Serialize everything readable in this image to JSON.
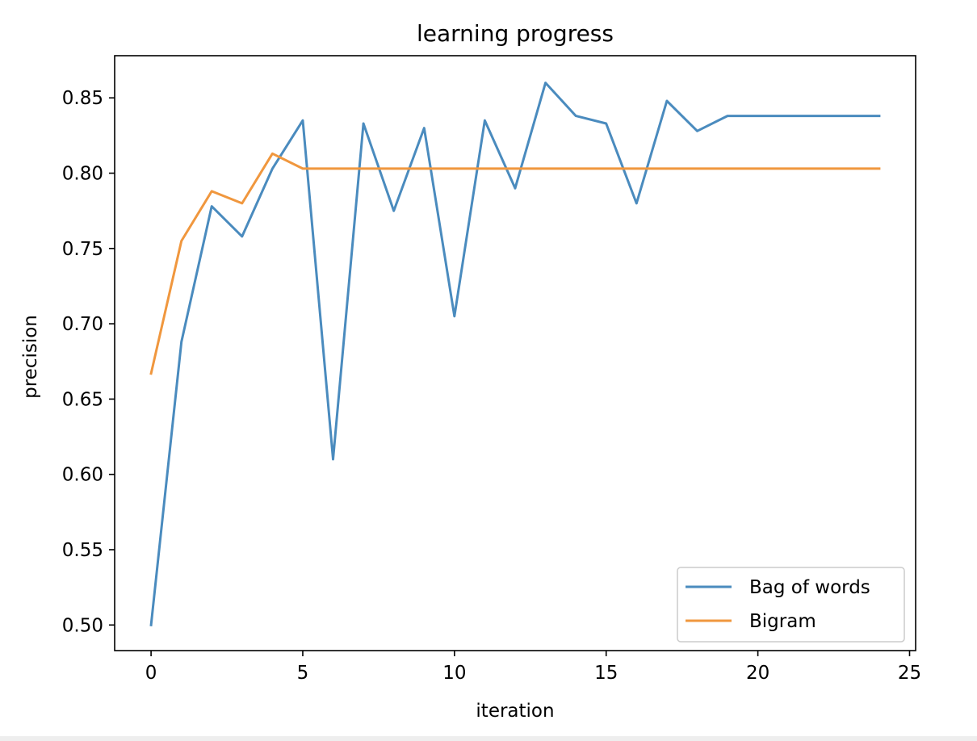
{
  "chart_data": {
    "type": "line",
    "title": "learning progress",
    "xlabel": "iteration",
    "ylabel": "precision",
    "xlim": [
      -1.2,
      25.2
    ],
    "ylim": [
      0.483,
      0.878
    ],
    "xticks": [
      0,
      5,
      10,
      15,
      20,
      25
    ],
    "yticks": [
      0.5,
      0.55,
      0.6,
      0.65,
      0.7,
      0.75,
      0.8,
      0.85
    ],
    "xtick_labels": [
      "0",
      "5",
      "10",
      "15",
      "20",
      "25"
    ],
    "ytick_labels": [
      "0.50",
      "0.55",
      "0.60",
      "0.65",
      "0.70",
      "0.75",
      "0.80",
      "0.85"
    ],
    "grid": false,
    "legend_position": "lower-right",
    "x": [
      0,
      1,
      2,
      3,
      4,
      5,
      6,
      7,
      8,
      9,
      10,
      11,
      12,
      13,
      14,
      15,
      16,
      17,
      18,
      19,
      20,
      21,
      22,
      23,
      24
    ],
    "series": [
      {
        "name": "Bag of words",
        "color": "#4a8bbe",
        "values": [
          0.5,
          0.688,
          0.778,
          0.758,
          0.803,
          0.835,
          0.61,
          0.833,
          0.775,
          0.83,
          0.705,
          0.835,
          0.79,
          0.86,
          0.838,
          0.833,
          0.78,
          0.848,
          0.828,
          0.838,
          0.838,
          0.838,
          0.838,
          0.838,
          0.838
        ]
      },
      {
        "name": "Bigram",
        "color": "#f0973e",
        "values": [
          0.667,
          0.755,
          0.788,
          0.78,
          0.813,
          0.803,
          0.803,
          0.803,
          0.803,
          0.803,
          0.803,
          0.803,
          0.803,
          0.803,
          0.803,
          0.803,
          0.803,
          0.803,
          0.803,
          0.803,
          0.803,
          0.803,
          0.803,
          0.803,
          0.803
        ]
      }
    ]
  }
}
